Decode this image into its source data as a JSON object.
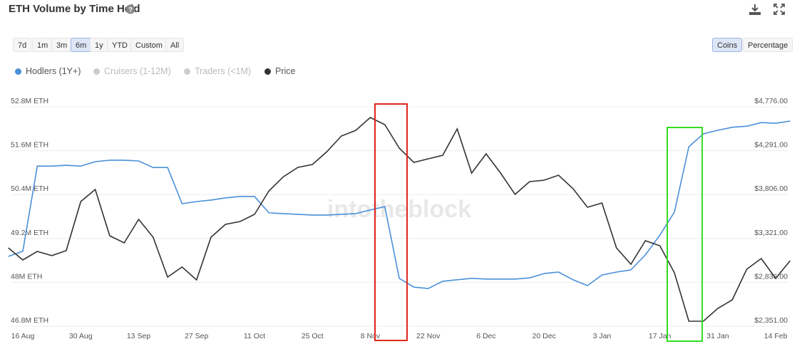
{
  "chart_data": {
    "type": "line",
    "title": "ETH Volume by Time Held",
    "range_buttons": [
      "7d",
      "1m",
      "3m",
      "6m",
      "1y",
      "YTD",
      "Custom",
      "All"
    ],
    "active_range": 3,
    "mode_buttons": [
      "Coins",
      "Percentage"
    ],
    "active_mode": 0,
    "watermark": "intotheblock",
    "categories": [
      null,
      "16 Aug",
      null,
      null,
      null,
      "30 Aug",
      null,
      null,
      null,
      "13 Sep",
      null,
      null,
      null,
      "27 Sep",
      null,
      null,
      null,
      "11 Oct",
      null,
      null,
      null,
      "25 Oct",
      null,
      null,
      null,
      "8 Nov",
      null,
      null,
      null,
      "22 Nov",
      null,
      null,
      null,
      "6 Dec",
      null,
      null,
      null,
      "20 Dec",
      null,
      null,
      null,
      "3 Jan",
      null,
      null,
      null,
      "17 Jan",
      null,
      null,
      null,
      "31 Jan",
      null,
      null,
      null,
      "14 Feb",
      null
    ],
    "series": [
      {
        "name": "Hodlers (1Y+)",
        "color": "#4a90d9",
        "values": [
          48710000,
          48850000,
          51180000,
          51180000,
          51200000,
          51180000,
          51300000,
          51340000,
          51340000,
          51320000,
          51140000,
          51140000,
          50150000,
          50210000,
          50250000,
          50310000,
          50350000,
          50350000,
          49900000,
          49880000,
          49860000,
          49840000,
          49840000,
          49860000,
          49880000,
          49980000,
          50070000,
          48110000,
          47870000,
          47830000,
          48030000,
          48070000,
          48110000,
          48090000,
          48090000,
          48090000,
          48120000,
          48240000,
          48280000,
          48070000,
          47910000,
          48200000,
          48280000,
          48340000,
          48750000,
          49290000,
          49920000,
          51710000,
          52060000,
          52160000,
          52240000,
          52270000,
          52370000,
          52350000,
          52410000
        ]
      },
      {
        "name": "Price",
        "color": "#333333",
        "axis": "y2",
        "values": [
          3217,
          3083,
          3178,
          3131,
          3186,
          3729,
          3863,
          3351,
          3272,
          3532,
          3335,
          2894,
          3005,
          2863,
          3335,
          3477,
          3508,
          3587,
          3847,
          4004,
          4107,
          4138,
          4280,
          4453,
          4516,
          4658,
          4579,
          4319,
          4162,
          4201,
          4241,
          4532,
          4044,
          4256,
          4044,
          3808,
          3949,
          3965,
          4020,
          3871,
          3666,
          3713,
          3217,
          3036,
          3296,
          3241,
          2942,
          2406,
          2406,
          2548,
          2642,
          2981,
          3099,
          2879,
          3075
        ]
      }
    ],
    "hidden_series": [
      {
        "name": "Cruisers (1-12M)",
        "color": "#cccccc"
      },
      {
        "name": "Traders (<1M)",
        "color": "#cccccc"
      }
    ],
    "ylim": [
      46800000,
      52800000
    ],
    "yticks": [
      {
        "value": 46800000,
        "label": "46.8M ETH"
      },
      {
        "value": 48000000,
        "label": "48M ETH"
      },
      {
        "value": 49200000,
        "label": "49.2M ETH"
      },
      {
        "value": 50400000,
        "label": "50.4M ETH"
      },
      {
        "value": 51600000,
        "label": "51.6M ETH"
      },
      {
        "value": 52800000,
        "label": "52.8M ETH"
      }
    ],
    "y2lim": [
      2351,
      4776
    ],
    "y2ticks": [
      {
        "value": 2351,
        "label": "$2,351.00"
      },
      {
        "value": 2836,
        "label": "$2,836.00"
      },
      {
        "value": 3321,
        "label": "$3,321.00"
      },
      {
        "value": 3806,
        "label": "$3,806.00"
      },
      {
        "value": 4291,
        "label": "$4,291.00"
      },
      {
        "value": 4776,
        "label": "$4,776.00"
      }
    ],
    "grid": true
  }
}
